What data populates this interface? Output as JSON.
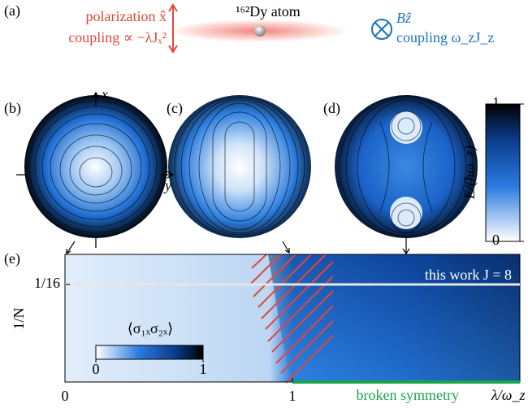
{
  "panel_a": {
    "label": "(a)",
    "polarization": "polarization x̂",
    "coupling_left": "coupling ∝ −λJₓ²",
    "atom": "¹⁶²Dy atom",
    "field": "Bẑ",
    "coupling_right": "coupling ω_zJ_z"
  },
  "panel_b": {
    "label": "(b)",
    "x_axis": "x",
    "y_axis": "y"
  },
  "panel_c": {
    "label": "(c)"
  },
  "panel_d": {
    "label": "(d)"
  },
  "energy_colorbar": {
    "label": "E/(ħω_z)",
    "ticks": [
      0,
      1
    ]
  },
  "panel_e": {
    "label": "(e)",
    "xlabel": "λ/ω_z",
    "ylabel": "1/N",
    "xticks": [
      0,
      1
    ],
    "yticks": [
      {
        "value": 0.0625,
        "label": "1/16"
      }
    ],
    "annotation": "this work J = 8",
    "phase_label": "broken symmetry",
    "inset_label": "⟨σ₁ₓσ₂ₓ⟩",
    "inset_ticks": [
      0,
      1
    ]
  }
}
